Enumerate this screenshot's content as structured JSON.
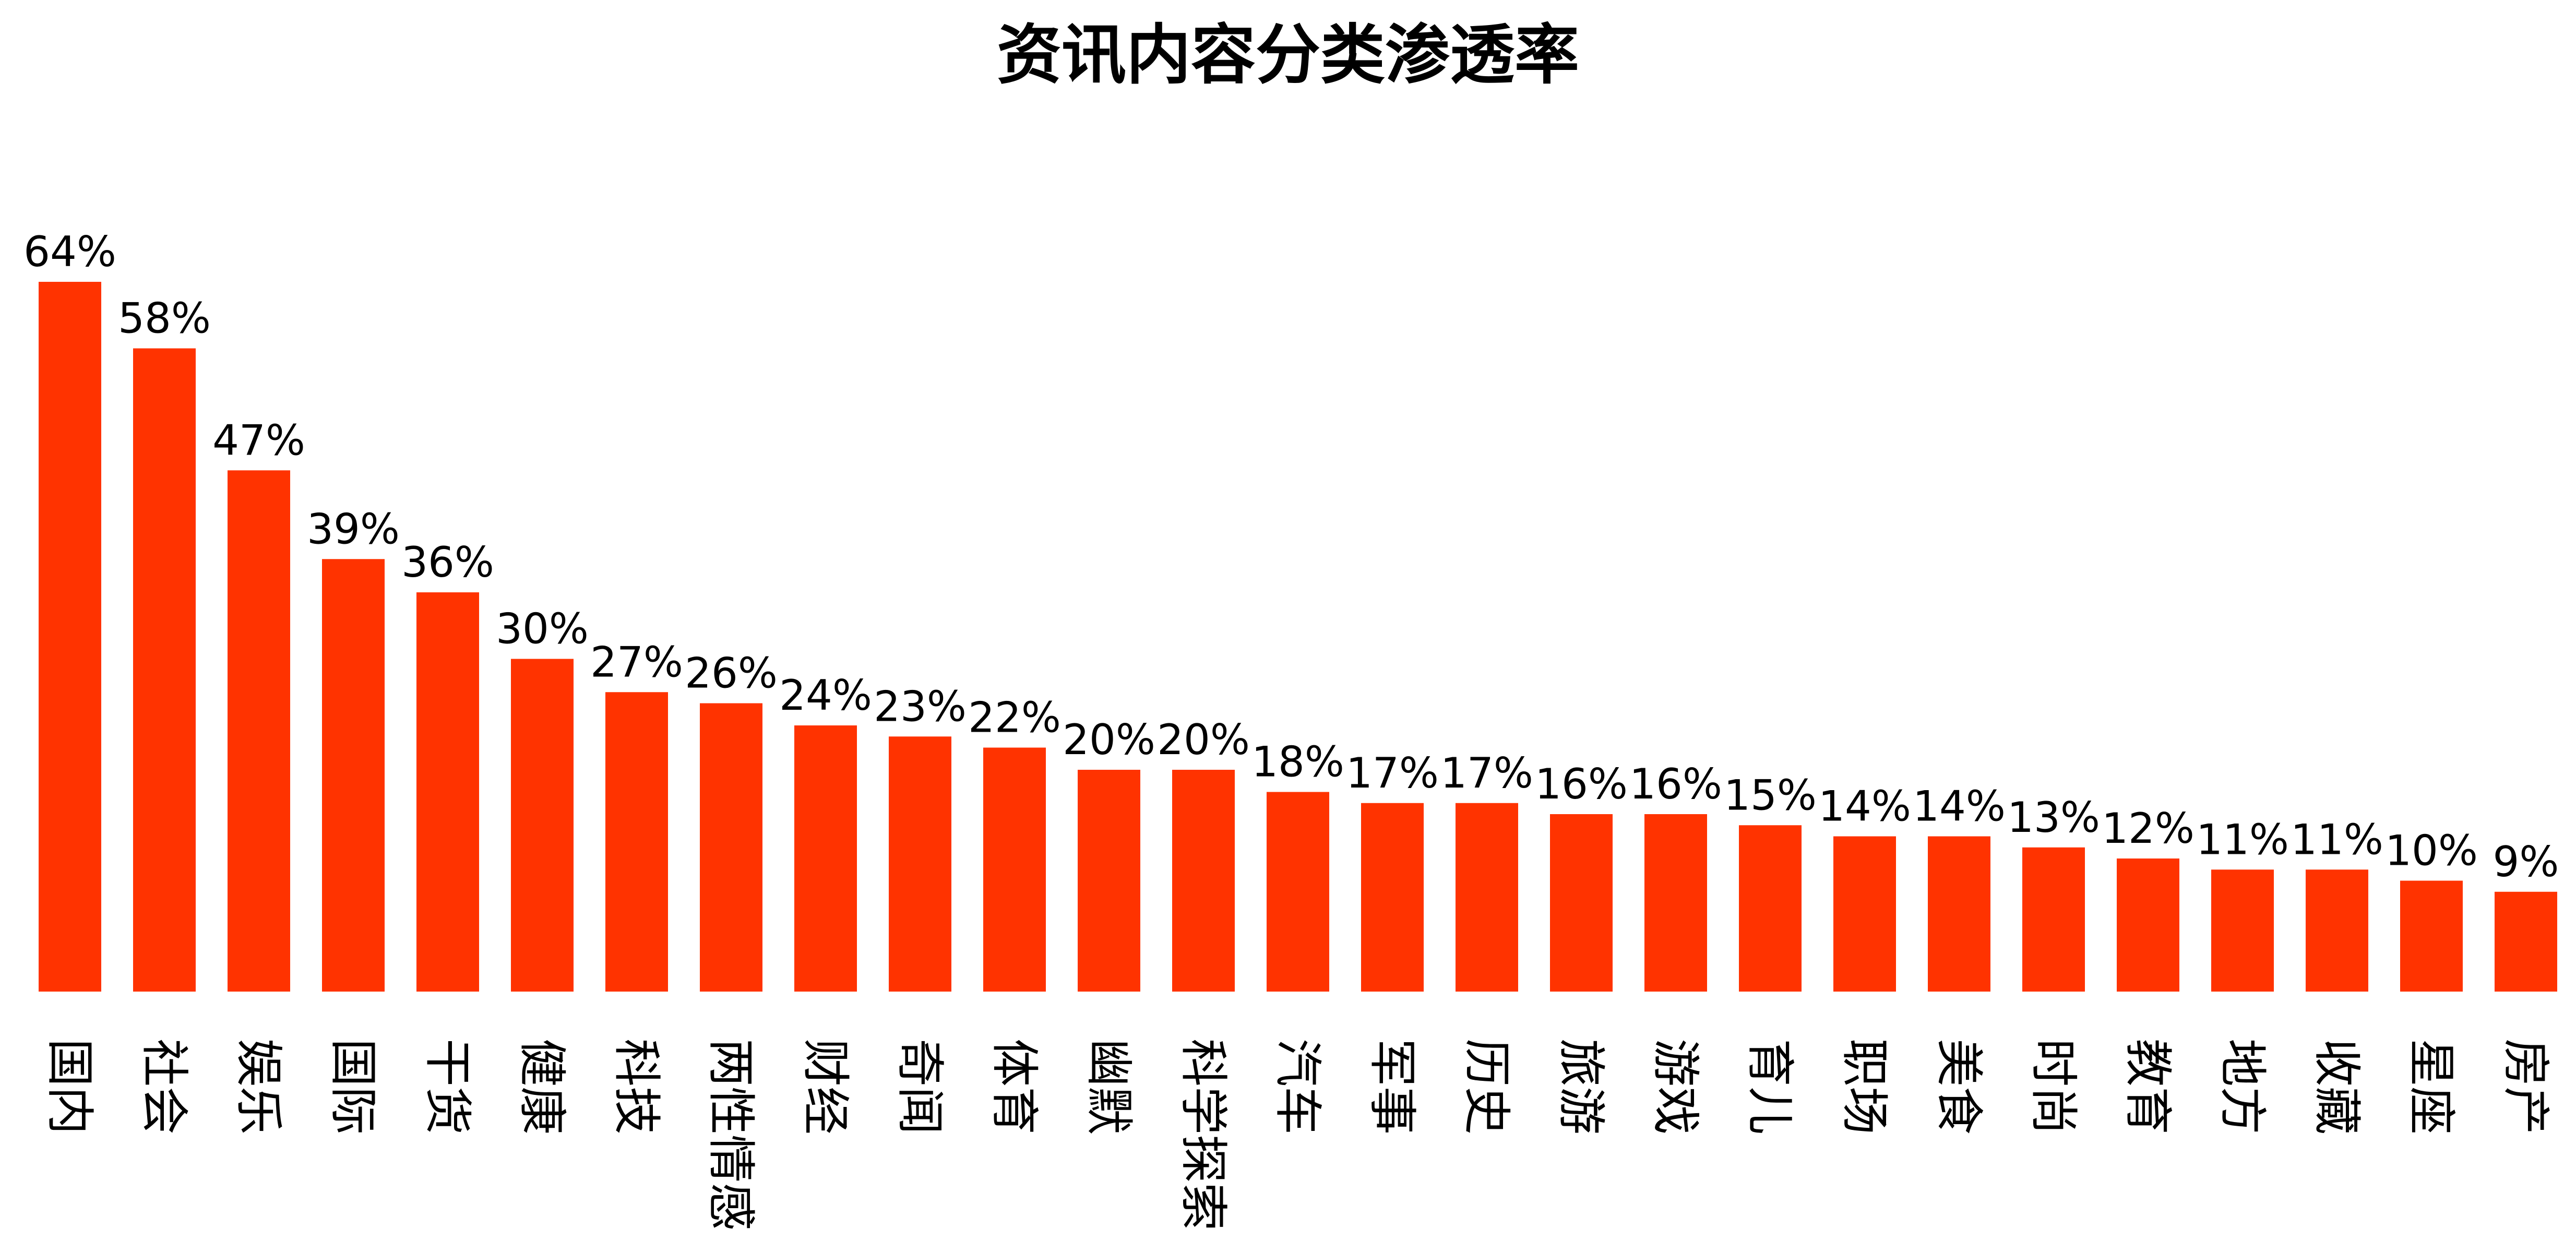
{
  "chart_data": {
    "type": "bar",
    "title": "资讯内容分类渗透率",
    "xlabel": "",
    "ylabel": "",
    "grid": false,
    "legend": "none",
    "bar_color": "#ff3300",
    "ylim": [
      0,
      64
    ],
    "categories": [
      "国内",
      "社会",
      "娱乐",
      "国际",
      "干货",
      "健康",
      "科技",
      "两性情感",
      "财经",
      "奇闻",
      "体育",
      "幽默",
      "科学探索",
      "汽车",
      "军事",
      "历史",
      "旅游",
      "游戏",
      "育儿",
      "职场",
      "美食",
      "时尚",
      "教育",
      "地方",
      "收藏",
      "星座",
      "房产"
    ],
    "values": [
      64,
      58,
      47,
      39,
      36,
      30,
      27,
      26,
      24,
      23,
      22,
      20,
      20,
      18,
      17,
      17,
      16,
      16,
      15,
      14,
      14,
      13,
      12,
      11,
      11,
      10,
      9
    ],
    "value_labels": [
      "64%",
      "58%",
      "47%",
      "39%",
      "36%",
      "30%",
      "27%",
      "26%",
      "24%",
      "23%",
      "22%",
      "20%",
      "20%",
      "18%",
      "17%",
      "17%",
      "16%",
      "16%",
      "15%",
      "14%",
      "14%",
      "13%",
      "12%",
      "11%",
      "11%",
      "10%",
      "9%"
    ]
  }
}
